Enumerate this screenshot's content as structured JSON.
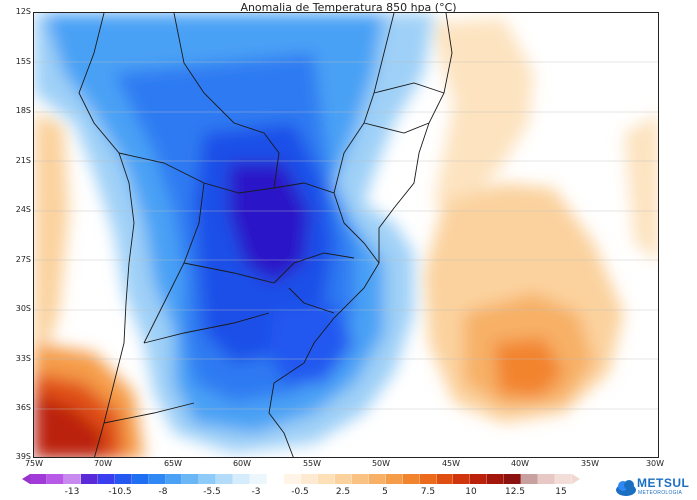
{
  "title": "Anomalia de Temperatura 850 hpa (°C)",
  "map": {
    "lat_labels": [
      "12S",
      "15S",
      "18S",
      "21S",
      "24S",
      "27S",
      "30S",
      "33S",
      "36S",
      "39S"
    ],
    "lon_labels": [
      "75W",
      "70W",
      "65W",
      "60W",
      "55W",
      "50W",
      "45W",
      "40W",
      "35W",
      "30W"
    ],
    "colors": {
      "deep_cold": "#2a16c8",
      "cold": "#1f4fe8",
      "cool": "#3f8df0",
      "light_cool": "#9fd0f7",
      "neutral": "#ffffff",
      "warm": "#fbc98a",
      "hot": "#f39a3a",
      "very_hot": "#d32a16",
      "extreme": "#a3100c"
    }
  },
  "colorbar": {
    "labels": [
      "-13",
      "-10.5",
      "-8",
      "-5.5",
      "-3",
      "-0.5",
      "2.5",
      "5",
      "7.5",
      "10",
      "12.5",
      "15"
    ],
    "colors": [
      "#a23ad8",
      "#b75ae8",
      "#c98af0",
      "#5a2ad8",
      "#3b3ef0",
      "#2458f0",
      "#1f6ff2",
      "#2f88f4",
      "#4aa1f5",
      "#6bb7f6",
      "#8ecbf8",
      "#b3dcfa",
      "#d4ecfb",
      "#ebf6fd",
      "#ffffff",
      "#fff4e6",
      "#feead0",
      "#fde0b8",
      "#fbd29e",
      "#f9c282",
      "#f7b066",
      "#f59c48",
      "#f2842e",
      "#ec6a1c",
      "#e04f12",
      "#d0350e",
      "#bb220c",
      "#a3160c",
      "#8c1210",
      "#c9a0a0",
      "#e8c8c4",
      "#f3ddd8"
    ]
  },
  "logo": {
    "name": "METSUL",
    "tagline": "METEOROLOGIA"
  }
}
